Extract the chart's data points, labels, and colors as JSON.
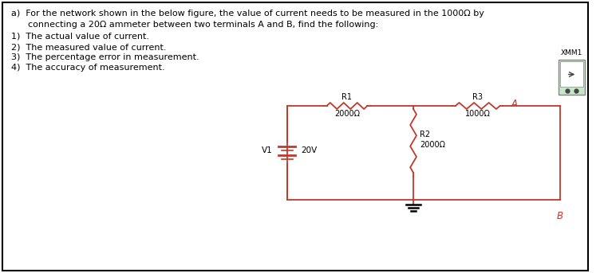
{
  "title_a": "a)  For the network shown in the below figure, the value of current needs to be measured in the 1000Ω by",
  "title_a2": "      connecting a 20Ω ammeter between two terminals A and B, find the following:",
  "item1": "1)  The actual value of current.",
  "item2": "2)  The measured value of current.",
  "item3": "3)  The percentage error in measurement.",
  "item4": "4)  The accuracy of measurement.",
  "bg_color": "#ffffff",
  "border_color": "#000000",
  "circuit_color": "#c0392b",
  "text_color": "#000000",
  "label_color_red": "#c0392b",
  "R1_label": "R1",
  "R1_val": "2000Ω",
  "R2_label": "R2",
  "R2_val": "2000Ω",
  "R3_label": "R3",
  "R3_val": "1000Ω",
  "V1_label": "V1",
  "V1_val": "20V",
  "A_label": "A",
  "B_label": "B",
  "XMM_label": "XMM1",
  "font_size_main": 8.0,
  "font_size_circuit": 7.0
}
